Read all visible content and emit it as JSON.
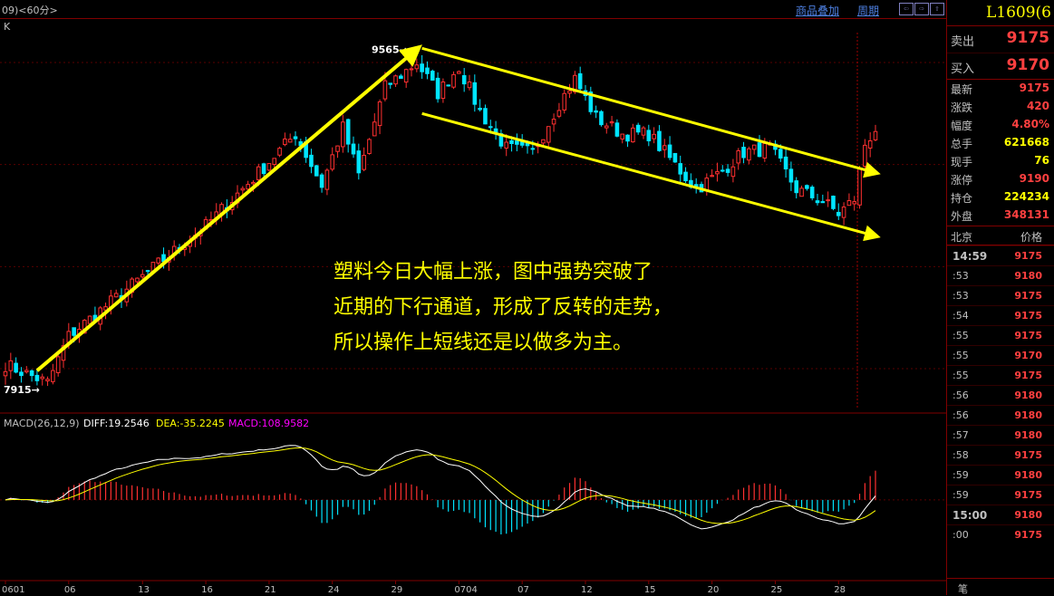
{
  "window": {
    "title": "09)<60分>",
    "overlay_link": "商品叠加",
    "period_link": "周期",
    "nav_buttons": [
      "⇦",
      "⇨",
      "⇧"
    ],
    "k_label": "K"
  },
  "quote_panel": {
    "symbol": "L1609(6",
    "ask": {
      "label": "卖出",
      "value": "9175"
    },
    "bid": {
      "label": "买入",
      "value": "9170"
    },
    "stats": [
      {
        "label": "最新",
        "value": "9175",
        "color": "#ff4040"
      },
      {
        "label": "涨跌",
        "value": "420",
        "color": "#ff4040"
      },
      {
        "label": "幅度",
        "value": "4.80%",
        "color": "#ff4040"
      },
      {
        "label": "总手",
        "value": "621668",
        "color": "#ffff00"
      },
      {
        "label": "现手",
        "value": "76",
        "color": "#ffff00"
      },
      {
        "label": "涨停",
        "value": "9190",
        "color": "#ff4040"
      },
      {
        "label": "持仓",
        "value": "224234",
        "color": "#ffff00"
      },
      {
        "label": "外盘",
        "value": "348131",
        "color": "#ff4040"
      }
    ],
    "ticks_header": {
      "left": "北京",
      "right": "价格"
    },
    "ticks": [
      {
        "time": "14:59",
        "price": "9175"
      },
      {
        "time": ":53",
        "price": "9180"
      },
      {
        "time": ":53",
        "price": "9175"
      },
      {
        "time": ":54",
        "price": "9175"
      },
      {
        "time": ":55",
        "price": "9175"
      },
      {
        "time": ":55",
        "price": "9170"
      },
      {
        "time": ":55",
        "price": "9175"
      },
      {
        "time": ":56",
        "price": "9180"
      },
      {
        "time": ":56",
        "price": "9180"
      },
      {
        "time": ":57",
        "price": "9180"
      },
      {
        "time": ":58",
        "price": "9175"
      },
      {
        "time": ":59",
        "price": "9180"
      },
      {
        "time": ":59",
        "price": "9175"
      },
      {
        "time": "15:00",
        "price": "9180"
      },
      {
        "time": ":00",
        "price": "9175"
      }
    ],
    "bottom_label": "笔"
  },
  "chart_data": [
    {
      "type": "candlestick",
      "title": "",
      "annotations": {
        "high": "9565",
        "low": "7915",
        "commentary": [
          "塑料今日大幅上涨，图中强势突破了",
          "近期的下行通道，形成了反转的走势，",
          "所以操作上短线还是以做多为主。"
        ]
      },
      "x_tick_labels": [
        "0601",
        "06",
        "13",
        "16",
        "21",
        "24",
        "29",
        "0704",
        "07",
        "12",
        "15",
        "20",
        "25",
        "28"
      ],
      "close_key_points": [
        [
          0,
          8020
        ],
        [
          8,
          7930
        ],
        [
          12,
          8160
        ],
        [
          25,
          8430
        ],
        [
          38,
          8700
        ],
        [
          48,
          8960
        ],
        [
          55,
          9150
        ],
        [
          60,
          8900
        ],
        [
          64,
          9180
        ],
        [
          67,
          8950
        ],
        [
          72,
          9380
        ],
        [
          78,
          9500
        ],
        [
          82,
          9350
        ],
        [
          86,
          9480
        ],
        [
          90,
          9260
        ],
        [
          95,
          9080
        ],
        [
          100,
          9060
        ],
        [
          105,
          9300
        ],
        [
          108,
          9420
        ],
        [
          112,
          9230
        ],
        [
          117,
          9150
        ],
        [
          122,
          9150
        ],
        [
          127,
          9000
        ],
        [
          131,
          8880
        ],
        [
          135,
          8950
        ],
        [
          140,
          9060
        ],
        [
          145,
          9080
        ],
        [
          150,
          8880
        ],
        [
          155,
          8820
        ],
        [
          158,
          8760
        ],
        [
          161,
          8830
        ],
        [
          163,
          9100
        ],
        [
          165,
          9175
        ]
      ],
      "annotated_high_index": 77,
      "annotated_low_index": 8,
      "overlays": [
        {
          "name": "uptrend-arrow",
          "from": [
            6,
            7990
          ],
          "to": [
            78,
            9565
          ]
        },
        {
          "name": "channel-upper-arrow",
          "from": [
            79,
            9570
          ],
          "to": [
            165,
            8960
          ]
        },
        {
          "name": "channel-lower-arrow",
          "from": [
            79,
            9250
          ],
          "to": [
            165,
            8650
          ]
        }
      ],
      "ylim": [
        7800,
        9700
      ],
      "colors": {
        "up": "#ff3030",
        "down": "#00e5ff",
        "arrow": "#ffff00"
      }
    },
    {
      "type": "macd",
      "title": "MACD(26,12,9)",
      "diff_label": "DIFF:19.2546",
      "dea_label": "DEA:-35.2245",
      "macd_label": "MACD:108.9582",
      "ylim": [
        -260,
        200
      ],
      "colors": {
        "diff": "#ffffff",
        "dea": "#ffff00",
        "pos": "#ff3030",
        "neg": "#00e5ff"
      }
    }
  ]
}
